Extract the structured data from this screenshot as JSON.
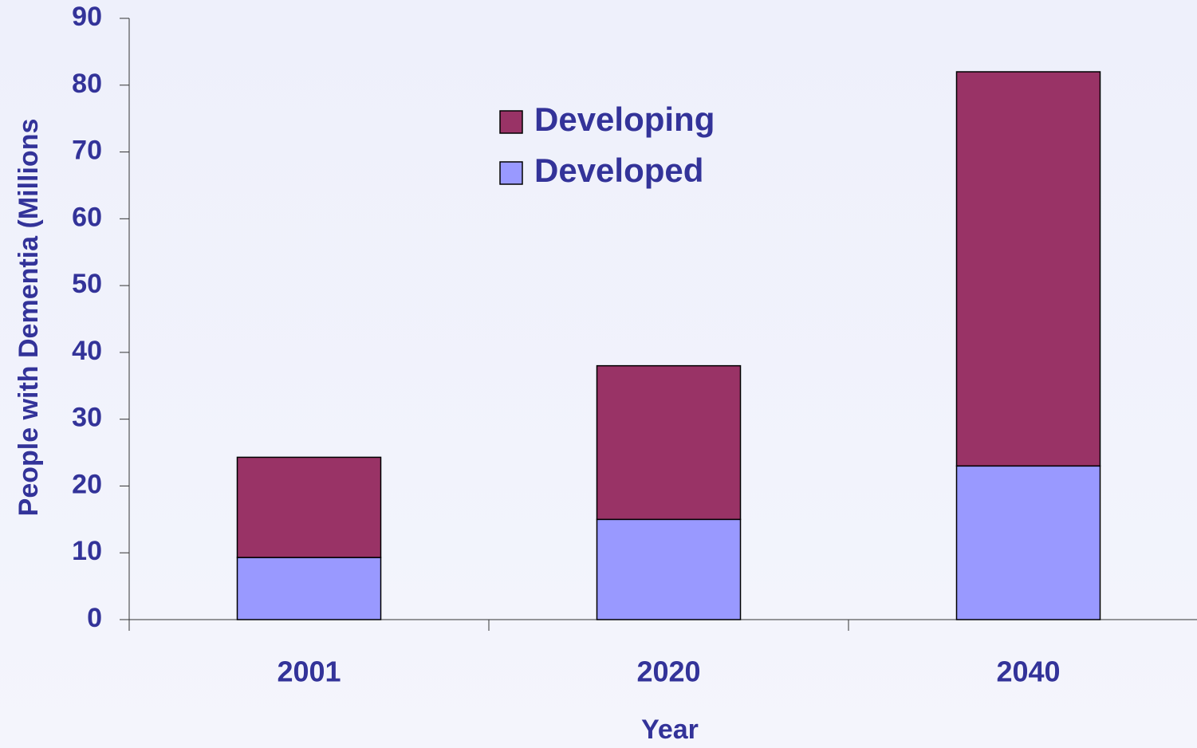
{
  "chart_data": {
    "type": "stacked_bar",
    "categories": [
      "2001",
      "2020",
      "2040"
    ],
    "series": [
      {
        "name": "Developed",
        "color": "#9999ff",
        "values": [
          9.3,
          15,
          23
        ]
      },
      {
        "name": "Developing",
        "color": "#993366",
        "values": [
          15,
          23,
          59
        ]
      }
    ],
    "x_label": "Year",
    "y_label": "People with Dementia (Millions",
    "ylim": [
      0,
      90
    ],
    "yticks": [
      0,
      10,
      20,
      30,
      40,
      50,
      60,
      70,
      80,
      90
    ],
    "legend": "top-center"
  }
}
